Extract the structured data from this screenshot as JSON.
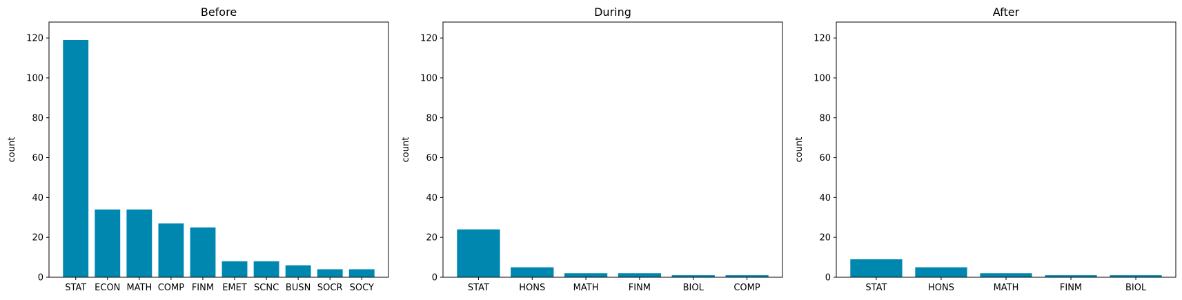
{
  "chart_data": [
    {
      "type": "bar",
      "title": "Before",
      "ylabel": "count",
      "ylim": [
        0,
        128
      ],
      "yticks": [
        0,
        20,
        40,
        60,
        80,
        100,
        120
      ],
      "color": "#0087b0",
      "categories": [
        "STAT",
        "ECON",
        "MATH",
        "COMP",
        "FINM",
        "EMET",
        "SCNC",
        "BUSN",
        "SOCR",
        "SOCY"
      ],
      "values": [
        119,
        34,
        34,
        27,
        25,
        8,
        8,
        6,
        4,
        4
      ]
    },
    {
      "type": "bar",
      "title": "During",
      "ylabel": "count",
      "ylim": [
        0,
        128
      ],
      "yticks": [
        0,
        20,
        40,
        60,
        80,
        100,
        120
      ],
      "color": "#0087b0",
      "categories": [
        "STAT",
        "HONS",
        "MATH",
        "FINM",
        "BIOL",
        "COMP"
      ],
      "values": [
        24,
        5,
        2,
        2,
        1,
        1
      ]
    },
    {
      "type": "bar",
      "title": "After",
      "ylabel": "count",
      "ylim": [
        0,
        128
      ],
      "yticks": [
        0,
        20,
        40,
        60,
        80,
        100,
        120
      ],
      "color": "#0087b0",
      "categories": [
        "STAT",
        "HONS",
        "MATH",
        "FINM",
        "BIOL"
      ],
      "values": [
        9,
        5,
        2,
        1,
        1
      ]
    }
  ]
}
